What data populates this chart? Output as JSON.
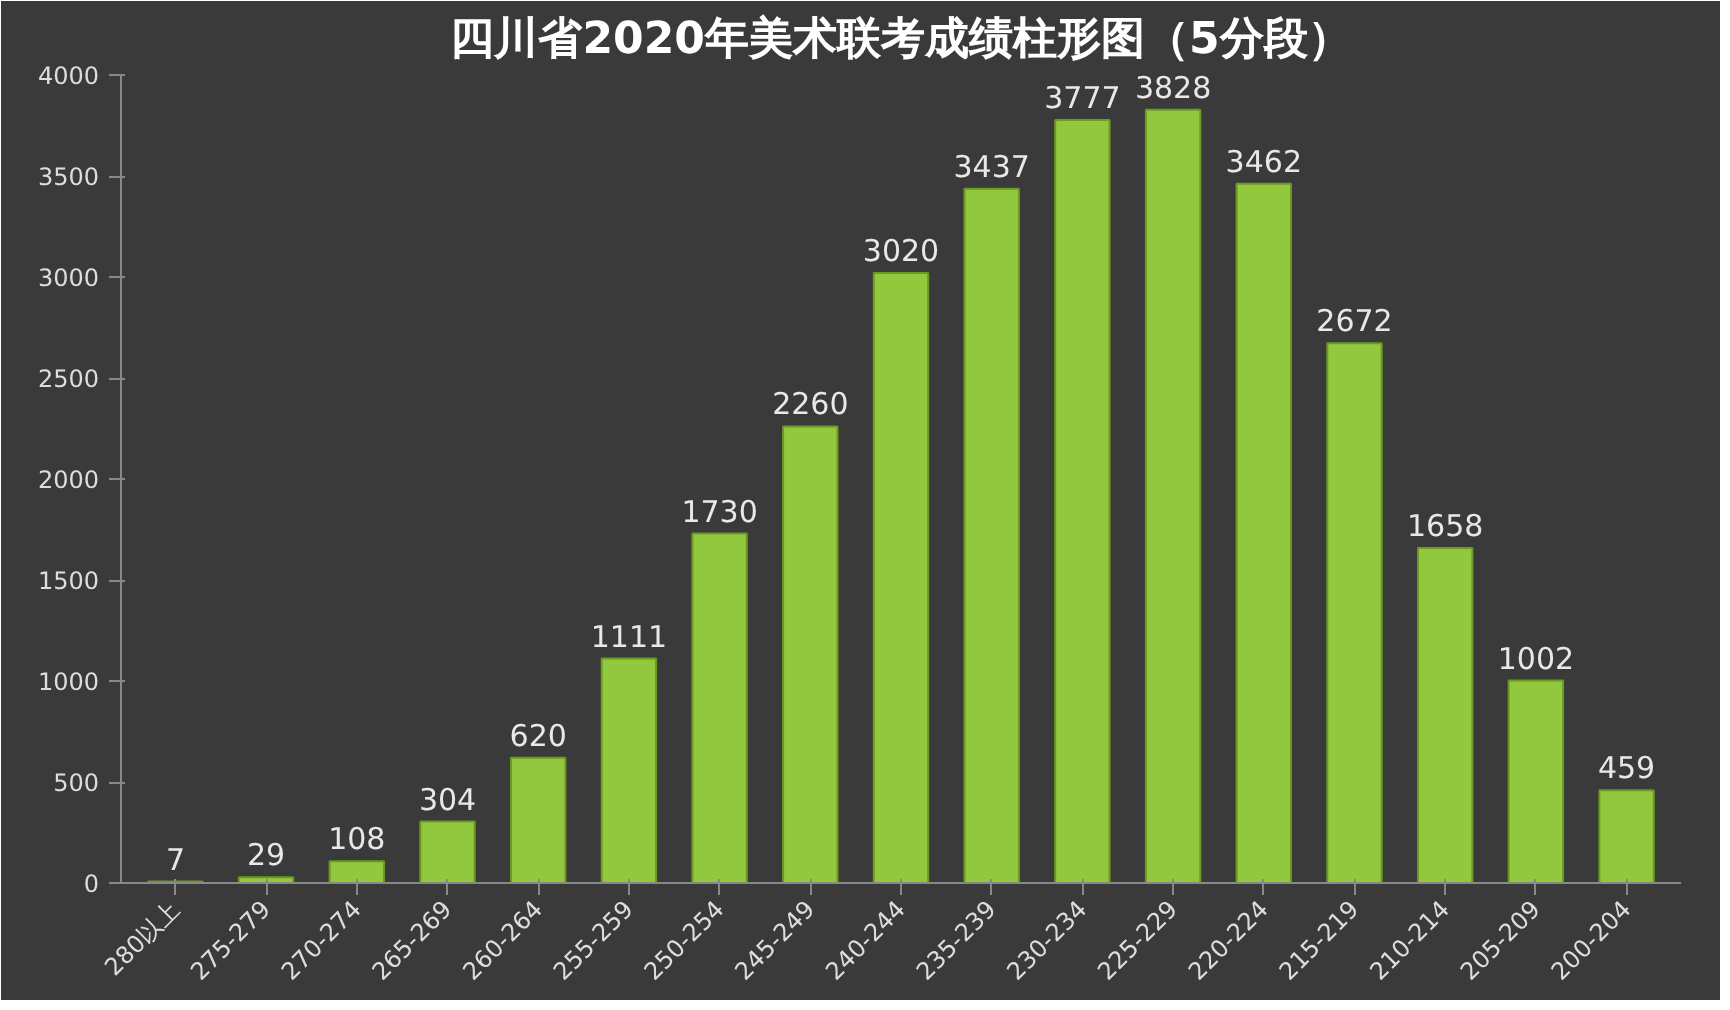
{
  "chart_data": {
    "type": "bar",
    "title": "四川省2020年美术联考成绩柱形图（5分段）",
    "categories": [
      "280以上",
      "275-279",
      "270-274",
      "265-269",
      "260-264",
      "255-259",
      "250-254",
      "245-249",
      "240-244",
      "235-239",
      "230-234",
      "225-229",
      "220-224",
      "215-219",
      "210-214",
      "205-209",
      "200-204"
    ],
    "values": [
      7,
      29,
      108,
      304,
      620,
      1111,
      1730,
      2260,
      3020,
      3437,
      3777,
      3828,
      3462,
      2672,
      1658,
      1002,
      459
    ],
    "color": "#92c83e",
    "ylim": [
      0,
      4000
    ],
    "yticks": [
      0,
      500,
      1000,
      1500,
      2000,
      2500,
      3000,
      3500,
      4000
    ],
    "grid": false,
    "data_labels": true
  }
}
